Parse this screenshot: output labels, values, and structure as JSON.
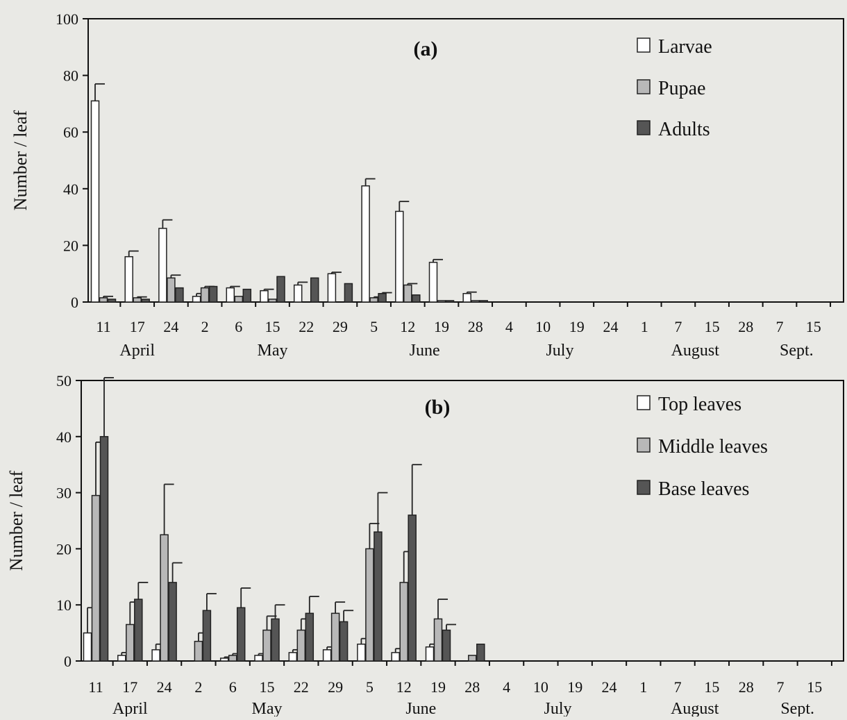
{
  "chart_data": [
    {
      "type": "bar",
      "title": "(a)",
      "ylabel": "Number / leaf",
      "xlabel": "",
      "ylim": [
        0,
        100
      ],
      "yticks": [
        0,
        20,
        40,
        60,
        80,
        100
      ],
      "grid": false,
      "legend_position": "top-right",
      "categories": [
        "11",
        "17",
        "24",
        "2",
        "6",
        "15",
        "22",
        "29",
        "5",
        "12",
        "19",
        "28",
        "4",
        "10",
        "19",
        "24",
        "1",
        "7",
        "15",
        "28",
        "7",
        "15"
      ],
      "months": [
        {
          "label": "April",
          "from": 0,
          "to": 2
        },
        {
          "label": "May",
          "from": 3,
          "to": 7
        },
        {
          "label": "June",
          "from": 8,
          "to": 11
        },
        {
          "label": "July",
          "from": 12,
          "to": 15
        },
        {
          "label": "August",
          "from": 16,
          "to": 19
        },
        {
          "label": "Sept.",
          "from": 20,
          "to": 21
        }
      ],
      "series": [
        {
          "name": "Larvae",
          "color": "#ffffff",
          "values": [
            71,
            16,
            26,
            2,
            5,
            4,
            6,
            10,
            41,
            32,
            14,
            3,
            0,
            0,
            0,
            0,
            0,
            0,
            0,
            0,
            0,
            0
          ],
          "errors": [
            6,
            2,
            3,
            1,
            0.5,
            0.5,
            1,
            0.5,
            2.5,
            3.5,
            1,
            0.5,
            null,
            null,
            null,
            null,
            null,
            null,
            null,
            null,
            null,
            null
          ]
        },
        {
          "name": "Pupae",
          "color": "#b8b8b8",
          "values": [
            1.5,
            1.5,
            8.5,
            5,
            2,
            1,
            0,
            0,
            1.5,
            6,
            0.5,
            0.5,
            0,
            0,
            0,
            0,
            0,
            0,
            0,
            0,
            0,
            0
          ],
          "errors": [
            0.5,
            0.3,
            1,
            0.5,
            null,
            null,
            null,
            null,
            0.3,
            0.5,
            null,
            null,
            null,
            null,
            null,
            null,
            null,
            null,
            null,
            null,
            null,
            null
          ]
        },
        {
          "name": "Adults",
          "color": "#555555",
          "values": [
            1,
            1,
            5,
            5.5,
            4.5,
            9,
            8.5,
            6.5,
            3,
            2.5,
            0.5,
            0.5,
            0,
            0,
            0,
            0,
            0,
            0,
            0,
            0,
            0,
            0
          ],
          "errors": [
            null,
            null,
            null,
            null,
            null,
            null,
            null,
            null,
            0.3,
            null,
            null,
            null,
            null,
            null,
            null,
            null,
            null,
            null,
            null,
            null,
            null,
            null
          ]
        }
      ]
    },
    {
      "type": "bar",
      "title": "(b)",
      "ylabel": "Number / leaf",
      "xlabel": "",
      "ylim": [
        0,
        50
      ],
      "yticks": [
        0,
        10,
        20,
        30,
        40,
        50
      ],
      "grid": false,
      "legend_position": "top-right",
      "categories": [
        "11",
        "17",
        "24",
        "2",
        "6",
        "15",
        "22",
        "29",
        "5",
        "12",
        "19",
        "28",
        "4",
        "10",
        "19",
        "24",
        "1",
        "7",
        "15",
        "28",
        "7",
        "15"
      ],
      "months": [
        {
          "label": "April",
          "from": 0,
          "to": 2
        },
        {
          "label": "May",
          "from": 3,
          "to": 7
        },
        {
          "label": "June",
          "from": 8,
          "to": 11
        },
        {
          "label": "July",
          "from": 12,
          "to": 15
        },
        {
          "label": "August",
          "from": 16,
          "to": 19
        },
        {
          "label": "Sept.",
          "from": 20,
          "to": 21
        }
      ],
      "series": [
        {
          "name": "Top leaves",
          "color": "#ffffff",
          "values": [
            5,
            1,
            2,
            0,
            0.5,
            1,
            1.5,
            2,
            3,
            1.5,
            2.5,
            0,
            0,
            0,
            0,
            0,
            0,
            0,
            0,
            0,
            0,
            0
          ],
          "errors": [
            4.5,
            0.5,
            1,
            null,
            0.2,
            0.3,
            0.5,
            0.5,
            1,
            0.7,
            0.5,
            null,
            null,
            null,
            null,
            null,
            null,
            null,
            null,
            null,
            null,
            null
          ]
        },
        {
          "name": "Middle leaves",
          "color": "#b8b8b8",
          "values": [
            29.5,
            6.5,
            22.5,
            3.5,
            1,
            5.5,
            5.5,
            8.5,
            20,
            14,
            7.5,
            1,
            0,
            0,
            0,
            0,
            0,
            0,
            0,
            0,
            0,
            0
          ],
          "errors": [
            9.5,
            4,
            9,
            1.5,
            0.3,
            2.5,
            2,
            2,
            4.5,
            5.5,
            3.5,
            null,
            null,
            null,
            null,
            null,
            null,
            null,
            null,
            null,
            null,
            null
          ]
        },
        {
          "name": "Base leaves",
          "color": "#555555",
          "values": [
            40,
            11,
            14,
            9,
            9.5,
            7.5,
            8.5,
            7,
            23,
            26,
            5.5,
            3,
            0,
            0,
            0,
            0,
            0,
            0,
            0,
            0,
            0,
            0
          ],
          "errors": [
            10.5,
            3,
            3.5,
            3,
            3.5,
            2.5,
            3,
            2,
            7,
            9,
            1,
            null,
            null,
            null,
            null,
            null,
            null,
            null,
            null,
            null,
            null,
            null
          ]
        }
      ]
    }
  ]
}
